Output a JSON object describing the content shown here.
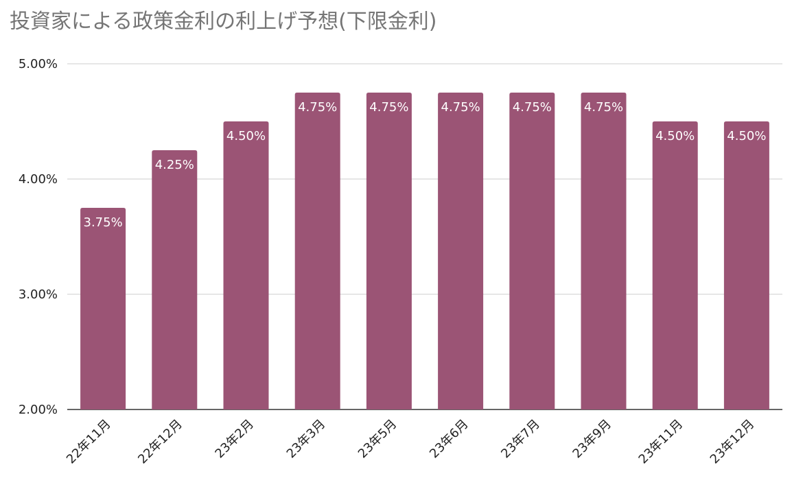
{
  "chart_data": {
    "type": "bar",
    "title": "投資家による政策金利の利上げ予想(下限金利)",
    "categories": [
      "22年11月",
      "22年12月",
      "23年2月",
      "23年3月",
      "23年5月",
      "23年6月",
      "23年7月",
      "23年9月",
      "23年11月",
      "23年12月"
    ],
    "values": [
      3.75,
      4.25,
      4.5,
      4.75,
      4.75,
      4.75,
      4.75,
      4.75,
      4.5,
      4.5
    ],
    "data_labels": [
      "3.75%",
      "4.25%",
      "4.50%",
      "4.75%",
      "4.75%",
      "4.75%",
      "4.75%",
      "4.75%",
      "4.50%",
      "4.50%"
    ],
    "yticks": [
      2.0,
      3.0,
      4.0,
      5.0
    ],
    "ytick_labels": [
      "2.00%",
      "3.00%",
      "4.00%",
      "5.00%"
    ],
    "ylim": [
      2.0,
      5.0
    ],
    "grid": true,
    "legend": "none",
    "bar_color": "#9b5475",
    "grid_color": "#cccccc"
  }
}
